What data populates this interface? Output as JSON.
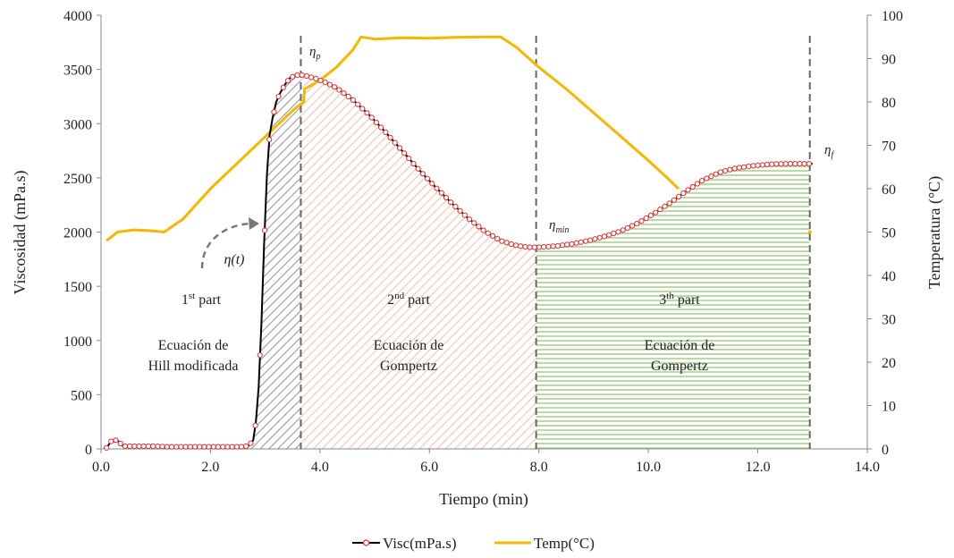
{
  "chart_data": {
    "type": "line",
    "xlabel": "Tiempo (min)",
    "ylabel": "Viscosidad (mPa.s)",
    "y2label": "Temperatura (°C)",
    "xlim": [
      0,
      14
    ],
    "ylim": [
      0,
      4000
    ],
    "y2lim": [
      0,
      100
    ],
    "x_ticks": [
      "0.0",
      "2.0",
      "4.0",
      "6.0",
      "8.0",
      "10.0",
      "12.0",
      "14.0"
    ],
    "y_ticks": [
      "0",
      "500",
      "1000",
      "1500",
      "2000",
      "2500",
      "3000",
      "3500",
      "4000"
    ],
    "y2_ticks": [
      "0",
      "10",
      "20",
      "30",
      "40",
      "50",
      "60",
      "70",
      "80",
      "90",
      "100"
    ],
    "grid": false,
    "legend_position": "bottom",
    "colors": {
      "visc_line": "#000000",
      "visc_marker": "#e03030",
      "temp": "#f5b700",
      "part1": "#9a9a9a",
      "part2": "#f2c4ad",
      "part3": "#bcd9a8",
      "divider": "#666666"
    },
    "series": [
      {
        "name": "Visc(mPa.s)",
        "axis": "left",
        "x": [
          0.1,
          0.2,
          0.3,
          0.4,
          0.6,
          0.8,
          1.0,
          1.2,
          1.5,
          1.8,
          2.1,
          2.4,
          2.6,
          2.7,
          2.78,
          2.83,
          2.88,
          2.93,
          2.98,
          3.03,
          3.08,
          3.13,
          3.2,
          3.28,
          3.36,
          3.45,
          3.55,
          3.65,
          3.75,
          3.9,
          4.1,
          4.3,
          4.6,
          4.9,
          5.2,
          5.5,
          5.8,
          6.1,
          6.4,
          6.7,
          7.0,
          7.3,
          7.55,
          7.8,
          8.0,
          8.3,
          8.6,
          8.9,
          9.2,
          9.5,
          9.8,
          10.1,
          10.4,
          10.7,
          11.0,
          11.3,
          11.6,
          11.9,
          12.2,
          12.5,
          12.8,
          13.0
        ],
        "values": [
          10,
          80,
          80,
          25,
          25,
          25,
          25,
          20,
          20,
          20,
          20,
          20,
          20,
          30,
          80,
          250,
          570,
          1160,
          1890,
          2520,
          2890,
          3040,
          3200,
          3290,
          3360,
          3420,
          3445,
          3450,
          3440,
          3420,
          3380,
          3330,
          3220,
          3080,
          2920,
          2750,
          2580,
          2420,
          2270,
          2130,
          2010,
          1920,
          1880,
          1860,
          1860,
          1870,
          1890,
          1920,
          1960,
          2010,
          2080,
          2170,
          2270,
          2380,
          2480,
          2550,
          2590,
          2610,
          2625,
          2630,
          2630,
          2630
        ]
      },
      {
        "name": "Temp(°C)",
        "axis": "right",
        "x": [
          0.1,
          0.3,
          0.6,
          0.9,
          1.15,
          1.5,
          2.0,
          2.5,
          3.0,
          3.5,
          3.7,
          3.72,
          4.0,
          4.3,
          4.6,
          4.75,
          5.0,
          5.5,
          6.0,
          6.5,
          7.0,
          7.3,
          7.6,
          8.0,
          8.5,
          9.0,
          9.5,
          10.0,
          10.3,
          10.55
        ],
        "values": [
          48,
          50,
          50.5,
          50.3,
          50,
          53,
          60,
          66,
          72,
          78,
          80,
          83,
          85,
          88,
          92,
          95,
          94.5,
          94.8,
          94.7,
          94.9,
          95,
          95,
          92.5,
          88,
          83,
          77.5,
          72,
          66.5,
          63,
          60
        ]
      }
    ],
    "legend": [
      "Visc(mPa.s)",
      "Temp(°C)"
    ],
    "annotations": {
      "eta_p_x": 3.65,
      "eta_min_x": 7.95,
      "eta_f_x": 12.95,
      "temp_stray_point": {
        "x": 12.95,
        "y": 50
      },
      "part1_line1_main": "1",
      "part1_line1_sup": "st",
      "part1_line1_rest": " part",
      "part1_line2": "Ecuación de",
      "part1_line3": "Hill modificada",
      "part2_line1_main": "2",
      "part2_line1_sup": "nd",
      "part2_line1_rest": " part",
      "part2_line2": "Ecuación de",
      "part2_line3": "Gompertz",
      "part3_line1_main": "3",
      "part3_line1_sup": "th",
      "part3_line1_rest": " part",
      "part3_line2": "Ecuación de",
      "part3_line3": "Gompertz",
      "eta_t_label": "η(t)",
      "eta_p_label": "η",
      "eta_p_sub": "p",
      "eta_min_label": "η",
      "eta_min_sub": "min",
      "eta_f_label": "η",
      "eta_f_sub": "f"
    }
  }
}
